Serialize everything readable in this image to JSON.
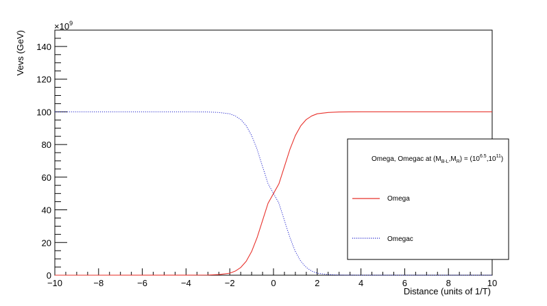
{
  "chart_data": {
    "type": "line",
    "title": "",
    "xlabel": "Distance (units of 1/T)",
    "ylabel": "Vevs (GeV)",
    "y_multiplier_label": "×10",
    "y_multiplier_exponent": "9",
    "xlim": [
      -10,
      10
    ],
    "ylim": [
      0,
      150
    ],
    "xticks": [
      -10,
      -8,
      -6,
      -4,
      -2,
      0,
      2,
      4,
      6,
      8,
      10
    ],
    "yticks": [
      0,
      20,
      40,
      60,
      80,
      100,
      120,
      140
    ],
    "x": [
      -10,
      -4,
      -3,
      -2.5,
      -2,
      -1.75,
      -1.5,
      -1.25,
      -1,
      -0.75,
      -0.5,
      -0.25,
      0,
      0.25,
      0.5,
      0.75,
      1,
      1.25,
      1.5,
      1.75,
      2,
      2.5,
      3,
      4,
      10
    ],
    "series": [
      {
        "name": "Omega",
        "color": "#e8302a",
        "style": "solid",
        "values": [
          0,
          0.01,
          0.1,
          0.4,
          1.2,
          2.5,
          4.7,
          8.5,
          14.5,
          23.0,
          33.5,
          44.0,
          50.0,
          56.0,
          66.5,
          77.0,
          85.5,
          91.5,
          95.3,
          97.5,
          98.8,
          99.6,
          99.9,
          100,
          100
        ]
      },
      {
        "name": "Omegac",
        "color": "#1f22cc",
        "style": "dotted",
        "values": [
          100,
          99.99,
          99.9,
          99.6,
          98.8,
          97.5,
          95.3,
          91.5,
          85.5,
          77.0,
          66.5,
          56.0,
          50.0,
          44.0,
          33.5,
          23.0,
          14.5,
          8.5,
          4.7,
          2.5,
          1.2,
          0.4,
          0.1,
          0,
          0
        ]
      }
    ],
    "legend": {
      "placement": "right",
      "title_prefix": "Omega, Omegac at (M",
      "title_sub1": "B-L",
      "title_mid1": ",M",
      "title_sub2": "R",
      "title_mid2": ") = (10",
      "title_sup1": "6.5",
      "title_mid3": ",10",
      "title_sup2": "11",
      "title_suffix": ")"
    },
    "grid": false
  }
}
